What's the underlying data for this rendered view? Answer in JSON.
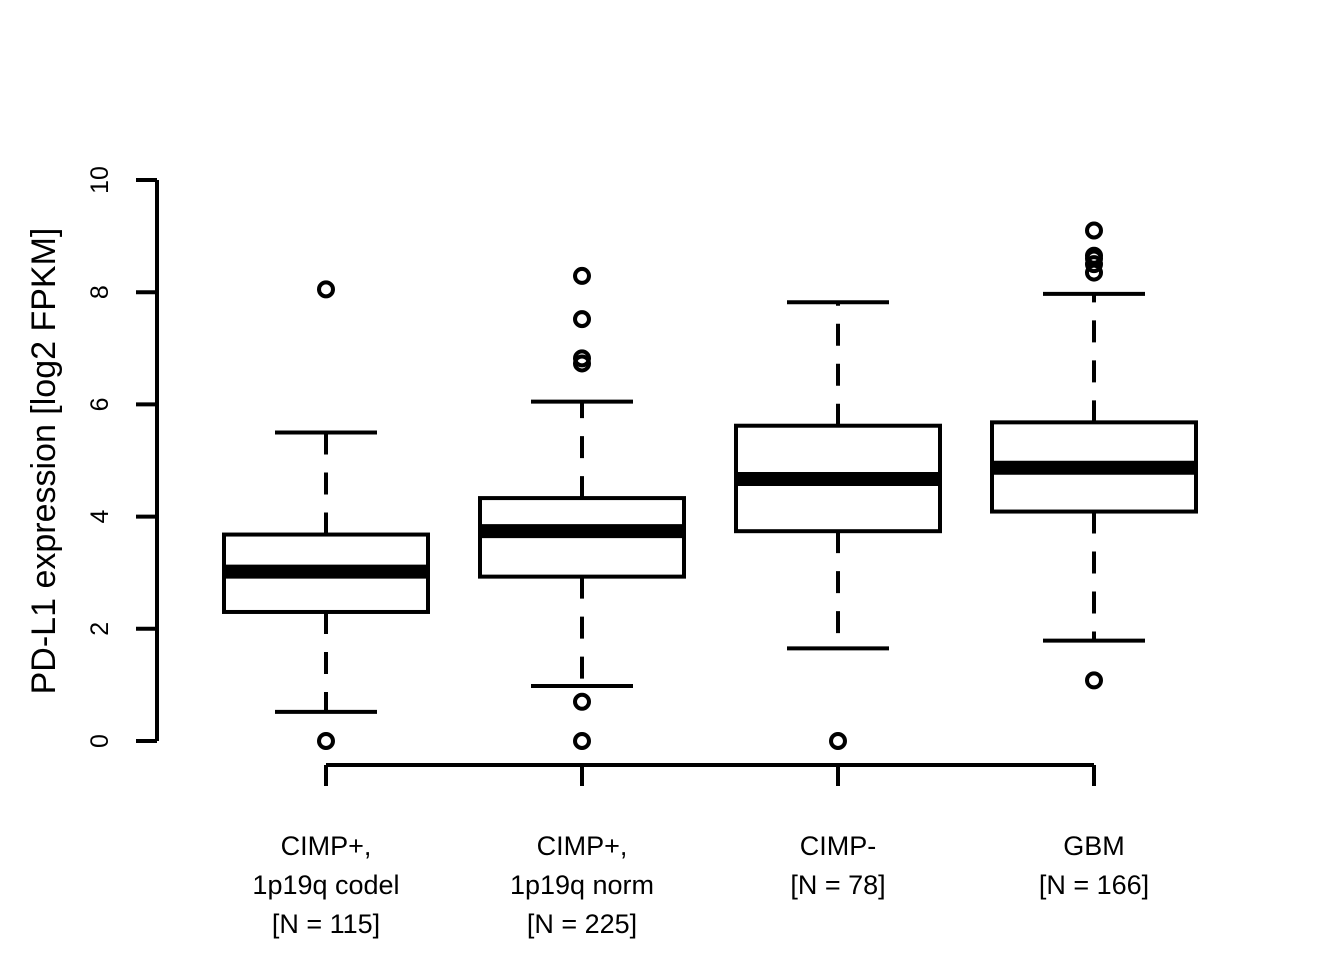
{
  "chart_data": {
    "type": "boxplot",
    "title": "",
    "xlabel": "",
    "ylabel": "PD-L1 expression [log2 FPKM]",
    "ylim": [
      0,
      10
    ],
    "yticks": [
      0,
      2,
      4,
      6,
      8,
      10
    ],
    "ytick_labels": [
      "0",
      "2",
      "4",
      "6",
      "8",
      "10"
    ],
    "grid": false,
    "colors": {
      "stroke": "#000000",
      "fill": "#ffffff"
    },
    "categories": [
      {
        "lines": [
          "CIMP+,",
          "1p19q codel",
          "[N = 115]"
        ]
      },
      {
        "lines": [
          "CIMP+,",
          "1p19q norm",
          "[N = 225]"
        ]
      },
      {
        "lines": [
          "CIMP-",
          "[N = 78]"
        ]
      },
      {
        "lines": [
          "GBM",
          "[N = 166]"
        ]
      }
    ],
    "boxes": [
      {
        "whisker_low": 0.52,
        "q1": 2.3,
        "median": 3.02,
        "q3": 3.68,
        "whisker_high": 5.5,
        "outliers": [
          0.0,
          8.05
        ]
      },
      {
        "whisker_low": 0.98,
        "q1": 2.93,
        "median": 3.74,
        "q3": 4.33,
        "whisker_high": 6.05,
        "outliers": [
          0.0,
          0.7,
          6.73,
          6.82,
          7.52,
          8.29
        ]
      },
      {
        "whisker_low": 1.65,
        "q1": 3.74,
        "median": 4.67,
        "q3": 5.62,
        "whisker_high": 7.82,
        "outliers": [
          0.0
        ]
      },
      {
        "whisker_low": 1.79,
        "q1": 4.09,
        "median": 4.87,
        "q3": 5.68,
        "whisker_high": 7.97,
        "outliers": [
          1.08,
          8.35,
          8.5,
          8.6,
          8.65,
          9.1
        ]
      }
    ]
  }
}
